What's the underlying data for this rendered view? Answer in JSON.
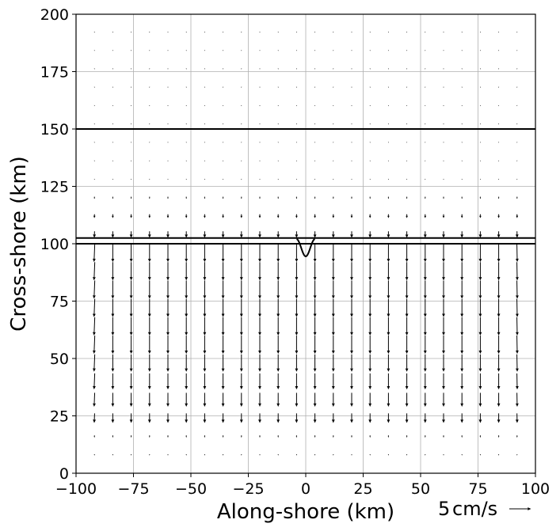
{
  "chart_data": {
    "type": "quiver",
    "xlabel": "Along-shore (km)",
    "ylabel": "Cross-shore (km)",
    "xlim": [
      -100,
      100
    ],
    "ylim": [
      0,
      200
    ],
    "xticks": [
      -100,
      -75,
      -50,
      -25,
      0,
      25,
      50,
      75,
      100
    ],
    "xtick_labels": [
      "−100",
      "−75",
      "−50",
      "−25",
      "0",
      "25",
      "50",
      "75",
      "100"
    ],
    "yticks": [
      0,
      25,
      50,
      75,
      100,
      125,
      150,
      175,
      200
    ],
    "ytick_labels": [
      "0",
      "25",
      "50",
      "75",
      "100",
      "125",
      "150",
      "175",
      "200"
    ],
    "grid": true,
    "colors": {
      "arrows": "#000000",
      "grid": "#b0b0b0",
      "lines": "#000000"
    },
    "horizontal_lines_y": [
      100,
      102.5,
      150
    ],
    "trough": {
      "x_center": 0,
      "half_width": 4,
      "base_y": 102,
      "min_y": 94.5
    },
    "quiver_scale": {
      "value": 5,
      "unit_label": "cm/s"
    },
    "vector_field": {
      "x": [
        -92,
        -84,
        -76,
        -68,
        -60,
        -52,
        -44,
        -36,
        -28,
        -20,
        -12,
        -4,
        4,
        12,
        20,
        28,
        36,
        44,
        52,
        60,
        68,
        76,
        84,
        92
      ],
      "y": [
        8,
        16,
        24,
        32,
        40,
        48,
        56,
        64,
        72,
        80,
        88,
        96,
        104,
        112,
        120,
        128,
        136,
        144,
        152,
        160,
        168,
        176,
        184,
        192
      ],
      "v_profile_cm_s": [
        -0.3,
        -0.5,
        -2.2,
        -3.2,
        -3.7,
        -4.0,
        -4.2,
        -4.2,
        -4.2,
        -4.2,
        -4.2,
        -4.2,
        -1.5,
        -0.9,
        -0.5,
        -0.2,
        -0.15,
        -0.1,
        -0.05,
        -0.05,
        -0.05,
        -0.05,
        -0.05,
        -0.05
      ]
    }
  }
}
